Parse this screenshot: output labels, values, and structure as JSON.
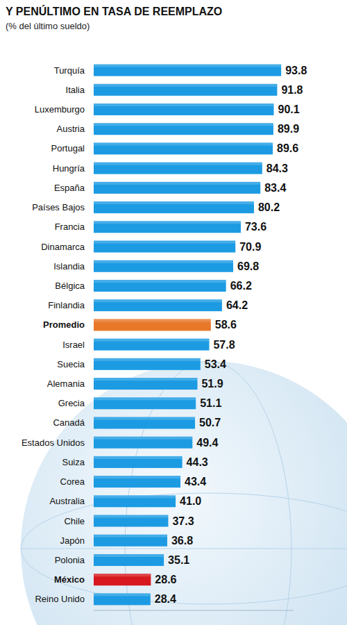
{
  "chart_data": {
    "type": "bar",
    "orientation": "horizontal",
    "title": "Y PENÚLTIMO EN TASA DE REEMPLAZO",
    "subtitle": "(% del último sueldo)",
    "categories": [
      "Turquía",
      "Italia",
      "Luxemburgo",
      "Austria",
      "Portugal",
      "Hungría",
      "España",
      "Países Bajos",
      "Francia",
      "Dinamarca",
      "Islandia",
      "Bélgica",
      "Finlandia",
      "Promedio",
      "Israel",
      "Suecia",
      "Alemania",
      "Grecia",
      "Canadá",
      "Estados Unidos",
      "Suiza",
      "Corea",
      "Australia",
      "Chile",
      "Japón",
      "Polonia",
      "México",
      "Reino Unido"
    ],
    "values": [
      93.8,
      91.8,
      90.1,
      89.9,
      89.6,
      84.3,
      83.4,
      80.2,
      73.6,
      70.9,
      69.8,
      66.2,
      64.2,
      58.6,
      57.8,
      53.4,
      51.9,
      51.1,
      50.7,
      49.4,
      44.3,
      43.4,
      41.0,
      37.3,
      36.8,
      35.1,
      28.6,
      28.4
    ],
    "value_labels": [
      "93.8",
      "91.8",
      "90.1",
      "89.9",
      "89.6",
      "84.3",
      "83.4",
      "80.2",
      "73.6",
      "70.9",
      "69.8",
      "66.2",
      "64.2",
      "58.6",
      "57.8",
      "53.4",
      "51.9",
      "51.1",
      "50.7",
      "49.4",
      "44.3",
      "43.4",
      "41.0",
      "37.3",
      "36.8",
      "35.1",
      "28.6",
      "28.4"
    ],
    "color": "#1c9be3",
    "colors": [
      "#1c9be3",
      "#1c9be3",
      "#1c9be3",
      "#1c9be3",
      "#1c9be3",
      "#1c9be3",
      "#1c9be3",
      "#1c9be3",
      "#1c9be3",
      "#1c9be3",
      "#1c9be3",
      "#1c9be3",
      "#1c9be3",
      "#e8782a",
      "#1c9be3",
      "#1c9be3",
      "#1c9be3",
      "#1c9be3",
      "#1c9be3",
      "#1c9be3",
      "#1c9be3",
      "#1c9be3",
      "#1c9be3",
      "#1c9be3",
      "#1c9be3",
      "#1c9be3",
      "#d7191f",
      "#1c9be3"
    ],
    "xlim": [
      0,
      100
    ],
    "data_labels": true,
    "tick_labels": "y",
    "grid": false
  }
}
